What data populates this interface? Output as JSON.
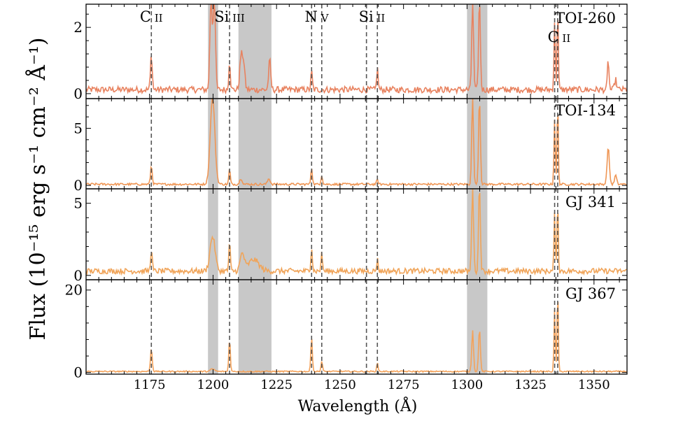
{
  "chart_data": {
    "type": "line",
    "xlabel": "Wavelength (Å)",
    "ylabel": "Flux (10⁻¹⁵ erg s⁻¹ cm⁻² Å⁻¹)",
    "xlim": [
      1150,
      1363
    ],
    "xticks": [
      1175,
      1200,
      1225,
      1250,
      1275,
      1300,
      1325,
      1350
    ],
    "xtick_labels": [
      "1175",
      "1200",
      "1225",
      "1250",
      "1275",
      "1300",
      "1325",
      "1350"
    ],
    "line_markers": [
      {
        "label": "C II",
        "wavelengths": [
          1175.7
        ]
      },
      {
        "label": "Si III",
        "wavelengths": [
          1206.5
        ]
      },
      {
        "label": "N V",
        "wavelengths": [
          1238.8,
          1242.8
        ]
      },
      {
        "label": "Si II",
        "wavelengths": [
          1260.4,
          1264.7
        ]
      },
      {
        "label": "C II",
        "wavelengths": [
          1334.5,
          1335.7
        ]
      }
    ],
    "masked_regions": [
      [
        1198,
        1202
      ],
      [
        1210,
        1223
      ],
      [
        1300,
        1308
      ]
    ],
    "panels": [
      {
        "name": "TOI-260",
        "color": "#e8825f",
        "ylim": [
          -0.15,
          2.7
        ],
        "yticks": [
          0,
          2
        ],
        "ytick_labels": [
          "0",
          "2"
        ],
        "baseline": 0.12,
        "noise": 0.06,
        "peaks": [
          [
            1175.7,
            1.05,
            0.35
          ],
          [
            1199.2,
            2.7,
            0.45
          ],
          [
            1200.5,
            2.7,
            0.45
          ],
          [
            1206.5,
            0.9,
            0.3
          ],
          [
            1211,
            0.95,
            0.5
          ],
          [
            1212,
            0.8,
            0.5
          ],
          [
            1222.3,
            0.9,
            0.4
          ],
          [
            1238.8,
            0.55,
            0.3
          ],
          [
            1264.7,
            0.65,
            0.3
          ],
          [
            1302.2,
            2.7,
            0.35
          ],
          [
            1304.9,
            2.7,
            0.35
          ],
          [
            1334.5,
            2.1,
            0.25
          ],
          [
            1335.7,
            2.5,
            0.25
          ],
          [
            1355.6,
            0.9,
            0.3
          ],
          [
            1358.5,
            0.3,
            0.4
          ]
        ]
      },
      {
        "name": "TOI-134",
        "color": "#ef9655",
        "ylim": [
          -0.3,
          7.6
        ],
        "yticks": [
          0,
          5
        ],
        "ytick_labels": [
          "0",
          "5"
        ],
        "baseline": 0.1,
        "noise": 0.06,
        "peaks": [
          [
            1175.7,
            1.6,
            0.35
          ],
          [
            1199.8,
            7.6,
            0.9
          ],
          [
            1206.5,
            1.3,
            0.3
          ],
          [
            1211,
            0.5,
            0.5
          ],
          [
            1222,
            0.5,
            0.5
          ],
          [
            1238.8,
            1.5,
            0.3
          ],
          [
            1242.8,
            0.8,
            0.3
          ],
          [
            1264.7,
            0.4,
            0.3
          ],
          [
            1302.2,
            7.6,
            0.35
          ],
          [
            1304.9,
            7.6,
            0.35
          ],
          [
            1334.5,
            5.8,
            0.25
          ],
          [
            1335.7,
            7.2,
            0.25
          ],
          [
            1355.6,
            3.2,
            0.45
          ],
          [
            1358.5,
            0.8,
            0.4
          ]
        ]
      },
      {
        "name": "GJ 341",
        "color": "#f0a459",
        "ylim": [
          -0.3,
          6.0
        ],
        "yticks": [
          0,
          5
        ],
        "ytick_labels": [
          "0",
          "5"
        ],
        "baseline": 0.3,
        "noise": 0.12,
        "peaks": [
          [
            1175.7,
            1.4,
            0.35
          ],
          [
            1199.8,
            2.4,
            1.0
          ],
          [
            1206.5,
            2.0,
            0.3
          ],
          [
            1211.5,
            1.2,
            0.8
          ],
          [
            1216,
            0.8,
            2.0
          ],
          [
            1238.8,
            1.7,
            0.3
          ],
          [
            1242.8,
            1.2,
            0.3
          ],
          [
            1264.7,
            0.8,
            0.3
          ],
          [
            1302.2,
            6.0,
            0.35
          ],
          [
            1304.9,
            6.0,
            0.35
          ],
          [
            1334.5,
            4.0,
            0.25
          ],
          [
            1335.7,
            5.0,
            0.25
          ]
        ]
      },
      {
        "name": "GJ 367",
        "color": "#f4a25a",
        "ylim": [
          -0.4,
          22.5
        ],
        "yticks": [
          0,
          20
        ],
        "ytick_labels": [
          "0",
          "20"
        ],
        "baseline": 0.25,
        "noise": 0.1,
        "peaks": [
          [
            1175.7,
            5.5,
            0.35
          ],
          [
            1199.8,
            0.6,
            0.8
          ],
          [
            1206.5,
            8.0,
            0.3
          ],
          [
            1238.8,
            8.5,
            0.3
          ],
          [
            1242.8,
            2.5,
            0.3
          ],
          [
            1264.7,
            2.0,
            0.3
          ],
          [
            1302.2,
            10.0,
            0.35
          ],
          [
            1304.9,
            10.5,
            0.35
          ],
          [
            1334.5,
            15.0,
            0.25
          ],
          [
            1335.7,
            20.0,
            0.25
          ]
        ]
      }
    ]
  }
}
